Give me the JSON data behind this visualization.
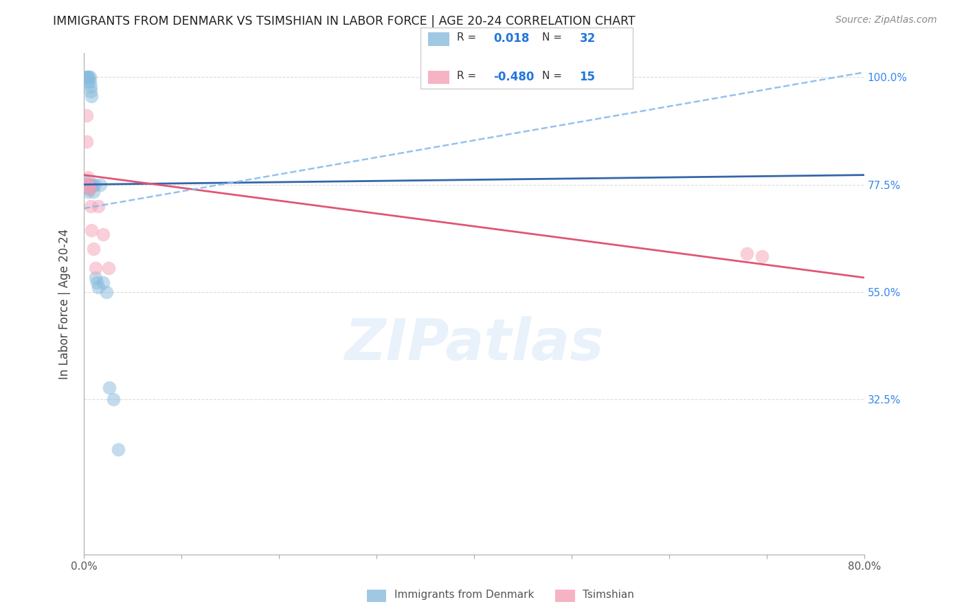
{
  "title": "IMMIGRANTS FROM DENMARK VS TSIMSHIAN IN LABOR FORCE | AGE 20-24 CORRELATION CHART",
  "source": "Source: ZipAtlas.com",
  "ylabel": "In Labor Force | Age 20-24",
  "xlim": [
    0.0,
    0.8
  ],
  "ylim": [
    0.0,
    1.05
  ],
  "xticks": [
    0.0,
    0.1,
    0.2,
    0.3,
    0.4,
    0.5,
    0.6,
    0.7,
    0.8
  ],
  "xticklabels": [
    "0.0%",
    "",
    "",
    "",
    "",
    "",
    "",
    "",
    "80.0%"
  ],
  "ytick_positions": [
    0.325,
    0.55,
    0.775,
    1.0
  ],
  "ytick_labels": [
    "32.5%",
    "55.0%",
    "77.5%",
    "100.0%"
  ],
  "watermark": "ZIPatlas",
  "blue_r_label": "0.018",
  "blue_n_label": "32",
  "pink_r_label": "-0.480",
  "pink_n_label": "15",
  "blue_scatter_x": [
    0.002,
    0.003,
    0.004,
    0.004,
    0.005,
    0.006,
    0.006,
    0.007,
    0.007,
    0.008,
    0.002,
    0.002,
    0.003,
    0.003,
    0.004,
    0.005,
    0.005,
    0.006,
    0.007,
    0.008,
    0.009,
    0.01,
    0.011,
    0.012,
    0.013,
    0.015,
    0.017,
    0.02,
    0.023,
    0.026,
    0.03,
    0.035
  ],
  "blue_scatter_y": [
    1.0,
    1.0,
    1.0,
    0.99,
    1.0,
    1.0,
    0.99,
    0.98,
    0.97,
    0.96,
    0.78,
    0.77,
    0.775,
    0.77,
    0.76,
    0.775,
    0.765,
    0.77,
    0.77,
    0.775,
    0.775,
    0.76,
    0.775,
    0.58,
    0.57,
    0.56,
    0.775,
    0.57,
    0.55,
    0.35,
    0.325,
    0.22
  ],
  "pink_scatter_x": [
    0.003,
    0.003,
    0.004,
    0.004,
    0.005,
    0.006,
    0.007,
    0.008,
    0.01,
    0.012,
    0.015,
    0.02,
    0.025,
    0.68,
    0.695
  ],
  "pink_scatter_y": [
    0.92,
    0.865,
    0.79,
    0.775,
    0.77,
    0.765,
    0.73,
    0.68,
    0.64,
    0.6,
    0.73,
    0.67,
    0.6,
    0.63,
    0.625
  ],
  "blue_line_x0": 0.0,
  "blue_line_y0": 0.775,
  "blue_line_x1": 0.8,
  "blue_line_y1": 0.795,
  "pink_line_x0": 0.0,
  "pink_line_y0": 0.795,
  "pink_line_x1": 0.8,
  "pink_line_y1": 0.58,
  "dashed_line_x0": 0.0,
  "dashed_line_y0": 0.725,
  "dashed_line_x1": 0.8,
  "dashed_line_y1": 1.01,
  "blue_color": "#88bbdd",
  "pink_color": "#f4a0b5",
  "blue_line_color": "#3366aa",
  "pink_line_color": "#e05575",
  "dashed_line_color": "#88bbee",
  "grid_color": "#cccccc",
  "title_color": "#222222",
  "source_color": "#888888",
  "right_label_color": "#3388ee",
  "legend_r_color": "#2277dd"
}
